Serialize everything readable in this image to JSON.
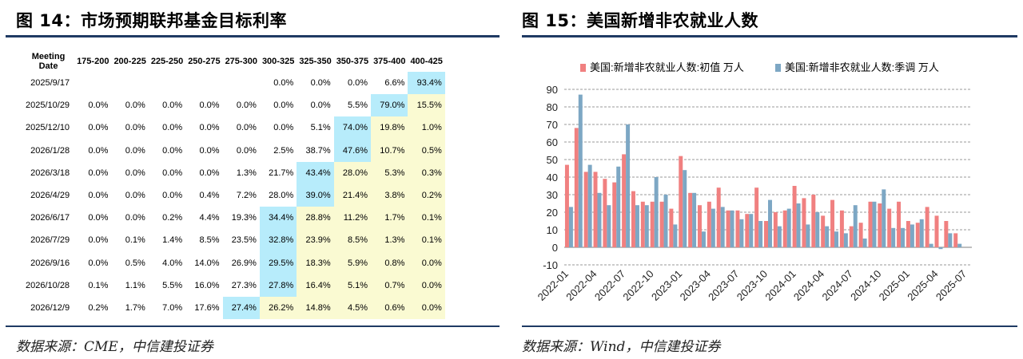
{
  "left": {
    "title": "图 14：市场预期联邦基金目标利率",
    "source": "数据来源：CME，中信建投证券",
    "table": {
      "header_date": [
        "Meeting",
        "Date"
      ],
      "columns": [
        "175-200",
        "200-225",
        "225-250",
        "250-275",
        "275-300",
        "300-325",
        "325-350",
        "350-375",
        "375-400",
        "400-425"
      ],
      "highlight_color": "#b7ecfb",
      "yellow_color": "#fafad2",
      "rows": [
        {
          "date": "2025/9/17",
          "cells": [
            "",
            "",
            "",
            "",
            "",
            "0.0%",
            "0.0%",
            "0.0%",
            "6.6%",
            "93.4%"
          ],
          "max": 9,
          "yellow_from": 10
        },
        {
          "date": "2025/10/29",
          "cells": [
            "0.0%",
            "0.0%",
            "0.0%",
            "0.0%",
            "0.0%",
            "0.0%",
            "0.0%",
            "5.5%",
            "79.0%",
            "15.5%"
          ],
          "max": 8,
          "yellow_from": 9
        },
        {
          "date": "2025/12/10",
          "cells": [
            "0.0%",
            "0.0%",
            "0.0%",
            "0.0%",
            "0.0%",
            "0.0%",
            "5.1%",
            "74.0%",
            "19.8%",
            "1.0%"
          ],
          "max": 7,
          "yellow_from": 8
        },
        {
          "date": "2026/1/28",
          "cells": [
            "0.0%",
            "0.0%",
            "0.0%",
            "0.0%",
            "0.0%",
            "2.5%",
            "38.7%",
            "47.6%",
            "10.7%",
            "0.5%"
          ],
          "max": 7,
          "yellow_from": 8
        },
        {
          "date": "2026/3/18",
          "cells": [
            "0.0%",
            "0.0%",
            "0.0%",
            "0.0%",
            "1.3%",
            "21.7%",
            "43.4%",
            "28.0%",
            "5.3%",
            "0.3%"
          ],
          "max": 6,
          "yellow_from": 7
        },
        {
          "date": "2026/4/29",
          "cells": [
            "0.0%",
            "0.0%",
            "0.0%",
            "0.4%",
            "7.2%",
            "28.0%",
            "39.0%",
            "21.4%",
            "3.8%",
            "0.2%"
          ],
          "max": 6,
          "yellow_from": 7
        },
        {
          "date": "2026/6/17",
          "cells": [
            "0.0%",
            "0.0%",
            "0.2%",
            "4.4%",
            "19.3%",
            "34.4%",
            "28.8%",
            "11.2%",
            "1.7%",
            "0.1%"
          ],
          "max": 5,
          "yellow_from": 6
        },
        {
          "date": "2026/7/29",
          "cells": [
            "0.0%",
            "0.1%",
            "1.4%",
            "8.5%",
            "23.5%",
            "32.8%",
            "23.9%",
            "8.5%",
            "1.3%",
            "0.1%"
          ],
          "max": 5,
          "yellow_from": 6
        },
        {
          "date": "2026/9/16",
          "cells": [
            "0.0%",
            "0.5%",
            "4.0%",
            "14.0%",
            "26.9%",
            "29.5%",
            "18.3%",
            "5.9%",
            "0.8%",
            "0.0%"
          ],
          "max": 5,
          "yellow_from": 6
        },
        {
          "date": "2026/10/28",
          "cells": [
            "0.1%",
            "1.1%",
            "5.5%",
            "16.0%",
            "27.3%",
            "27.8%",
            "16.4%",
            "5.1%",
            "0.7%",
            "0.0%"
          ],
          "max": 5,
          "yellow_from": 6
        },
        {
          "date": "2026/12/9",
          "cells": [
            "0.2%",
            "1.7%",
            "7.0%",
            "17.6%",
            "27.4%",
            "26.2%",
            "14.8%",
            "4.5%",
            "0.6%",
            "0.0%"
          ],
          "max": 4,
          "yellow_from": 5
        }
      ]
    }
  },
  "right": {
    "title": "图 15：美国新增非农就业人数",
    "source": "数据来源：Wind，中信建投证券",
    "chart_data": {
      "type": "bar",
      "title": "",
      "xlabel": "",
      "ylabel": "",
      "ylim": [
        -10,
        90
      ],
      "yticks": [
        -10,
        0,
        10,
        20,
        30,
        40,
        50,
        60,
        70,
        80,
        90
      ],
      "grid": "horizontal-dashed",
      "legend_position": "top",
      "x_tick_labels": [
        "2022-01",
        "2022-04",
        "2022-07",
        "2022-10",
        "2023-01",
        "2023-04",
        "2023-07",
        "2023-10",
        "2024-01",
        "2024-04",
        "2024-07",
        "2024-10",
        "2025-01",
        "2025-04",
        "2025-07"
      ],
      "series": [
        {
          "name": "美国:新增非农就业人数:初值 万人",
          "color": "#f08080",
          "values": [
            47,
            68,
            43,
            43,
            39,
            37,
            53,
            32,
            26,
            26,
            26,
            22,
            52,
            31,
            24,
            26,
            34,
            21,
            21,
            19,
            34,
            15,
            20,
            21,
            35,
            28,
            30,
            18,
            27,
            21,
            12,
            14,
            26,
            25,
            22,
            26,
            15,
            14,
            23,
            18,
            15,
            8,
            null
          ]
        },
        {
          "name": "美国:新增非农就业人数:季调 万人",
          "color": "#7da7c4",
          "values": [
            23,
            87,
            47,
            31,
            24,
            46,
            70,
            24,
            24,
            40,
            30,
            13,
            44,
            31,
            9,
            22,
            23,
            21,
            16,
            19,
            15,
            27,
            12,
            22,
            25,
            13,
            20,
            12,
            9,
            8,
            24,
            5,
            26,
            33,
            11,
            11,
            13,
            16,
            2,
            -1,
            8,
            2,
            null
          ]
        }
      ]
    }
  }
}
